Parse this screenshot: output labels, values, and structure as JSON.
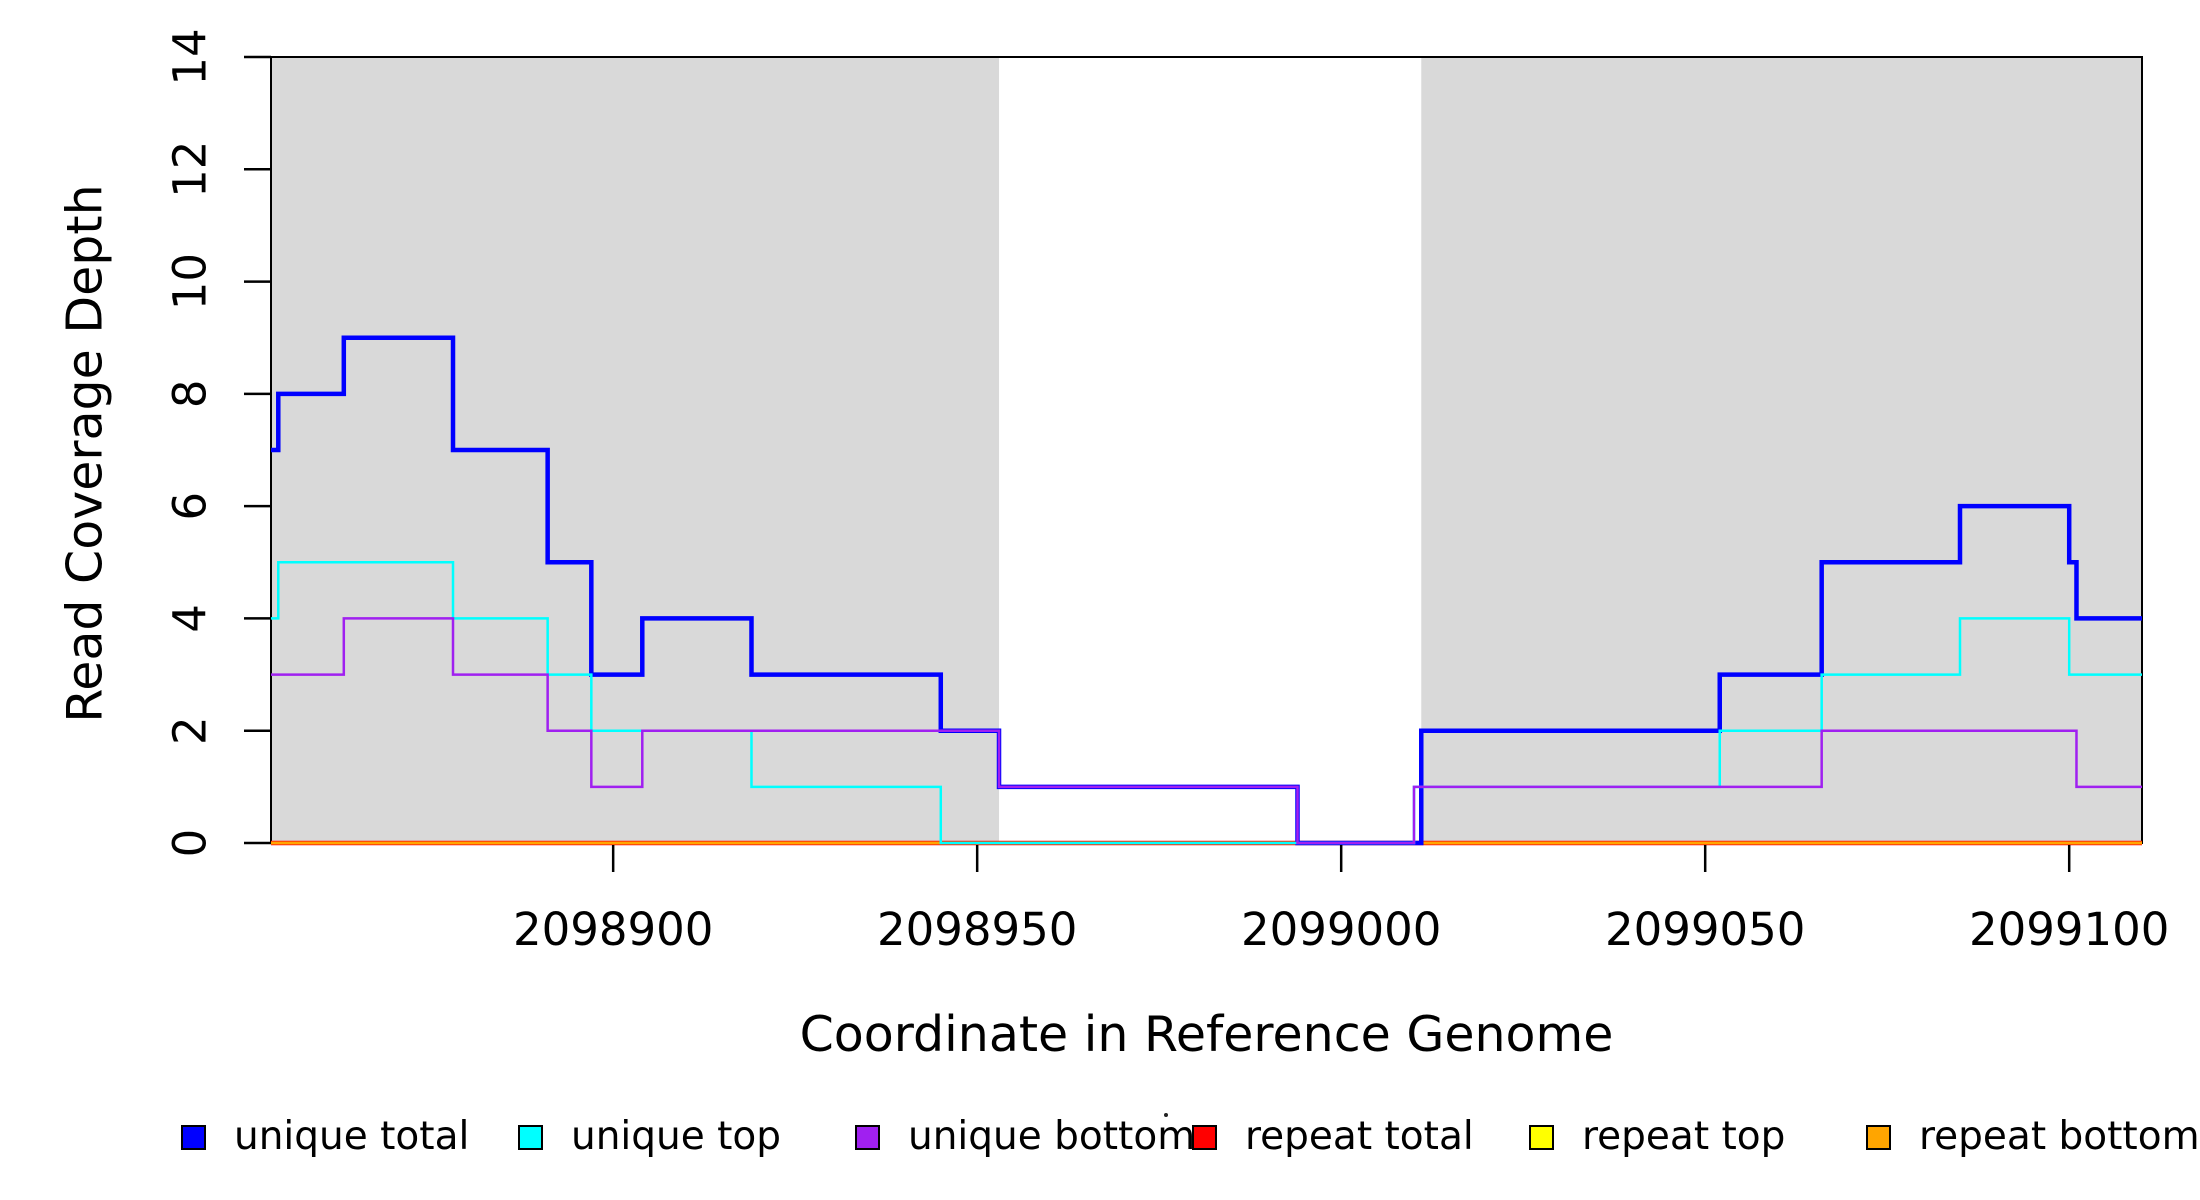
{
  "chart_data": {
    "type": "line",
    "subtype": "step",
    "title": "",
    "xlabel": "Coordinate in Reference Genome",
    "ylabel": "Read Coverage Depth",
    "xlim": [
      2098853,
      2099110
    ],
    "ylim": [
      0,
      14
    ],
    "x_ticks": [
      2098900,
      2098950,
      2099000,
      2099050,
      2099100
    ],
    "y_ticks": [
      0,
      2,
      4,
      6,
      8,
      10,
      12,
      14
    ],
    "grid": false,
    "legend_position": "bottom",
    "background_color": "#ffffff",
    "shaded_region_color": "#d9d9d9",
    "shaded_regions": [
      [
        2098853,
        2098953
      ],
      [
        2099011,
        2099110
      ]
    ],
    "series": [
      {
        "name": "unique total",
        "color": "#0000ff",
        "line_width": 4.5,
        "x": [
          2098853,
          2098854,
          2098863,
          2098878,
          2098891,
          2098897,
          2098904,
          2098919,
          2098945,
          2098953,
          2098994,
          2099011,
          2099052,
          2099066,
          2099085,
          2099100,
          2099101
        ],
        "y": [
          7,
          8,
          9,
          7,
          5,
          3,
          4,
          3,
          2,
          1,
          0,
          2,
          3,
          5,
          6,
          5,
          4
        ]
      },
      {
        "name": "unique top",
        "color": "#00ffff",
        "line_width": 2.5,
        "x": [
          2098853,
          2098854,
          2098878,
          2098891,
          2098897,
          2098919,
          2098945,
          2099010,
          2099052,
          2099066,
          2099085,
          2099100
        ],
        "y": [
          4,
          5,
          4,
          3,
          2,
          1,
          0,
          1,
          2,
          3,
          4,
          3
        ]
      },
      {
        "name": "unique bottom",
        "color": "#a020f0",
        "line_width": 2.5,
        "x": [
          2098853,
          2098863,
          2098878,
          2098891,
          2098897,
          2098904,
          2098953,
          2098994,
          2099010,
          2099066,
          2099101
        ],
        "y": [
          3,
          4,
          3,
          2,
          1,
          2,
          1,
          0,
          1,
          2,
          1
        ]
      },
      {
        "name": "repeat total",
        "color": "#ff0000",
        "line_width": 4.5,
        "x": [
          2098853
        ],
        "y": [
          0
        ]
      },
      {
        "name": "repeat top",
        "color": "#ffff00",
        "line_width": 2.5,
        "x": [
          2098853
        ],
        "y": [
          0
        ]
      },
      {
        "name": "repeat bottom",
        "color": "#ffa500",
        "line_width": 2.8,
        "x": [
          2098853
        ],
        "y": [
          0
        ]
      }
    ],
    "legend": [
      {
        "label": "unique total",
        "color": "#0000ff"
      },
      {
        "label": "unique top",
        "color": "#00ffff"
      },
      {
        "label": "unique bottom",
        "color": "#a020f0"
      },
      {
        "label": "repeat total",
        "color": "#ff0000"
      },
      {
        "label": "repeat top",
        "color": "#ffff00"
      },
      {
        "label": "repeat bottom",
        "color": "#ffa500"
      }
    ]
  }
}
